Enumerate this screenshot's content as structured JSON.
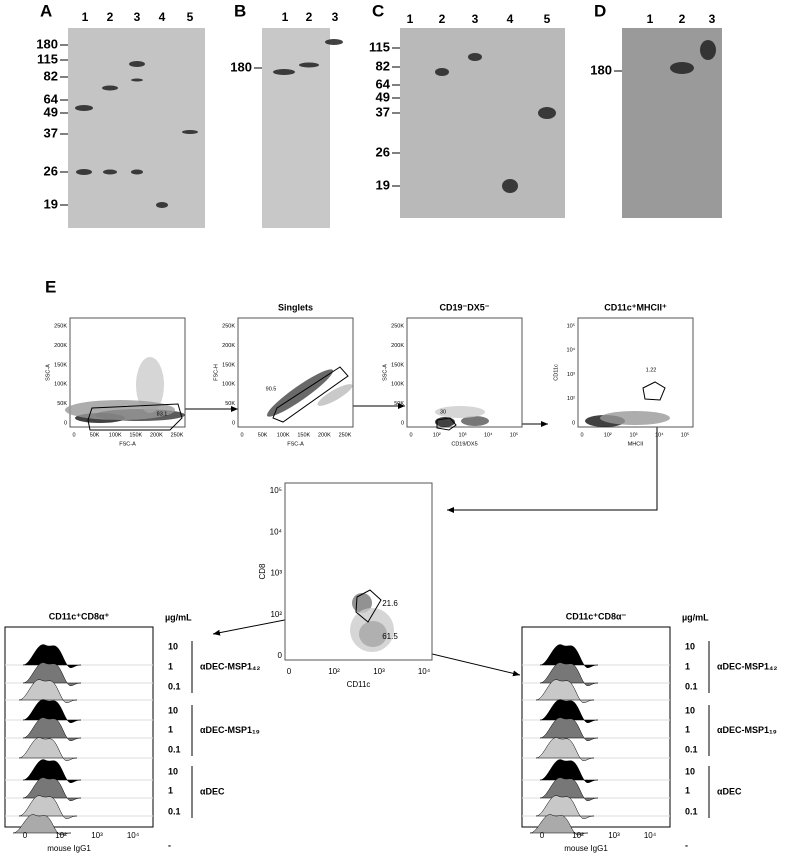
{
  "blots": [
    {
      "label": "A",
      "lanes": [
        "1",
        "2",
        "3",
        "4",
        "5"
      ],
      "markers": [
        "180",
        "115",
        "82",
        "64",
        "49",
        "37",
        "26",
        "19"
      ]
    },
    {
      "label": "B",
      "lanes": [
        "1",
        "2",
        "3"
      ],
      "markers": [
        "180"
      ]
    },
    {
      "label": "C",
      "lanes": [
        "1",
        "2",
        "3",
        "4",
        "5"
      ],
      "markers": [
        "115",
        "82",
        "64",
        "49",
        "37",
        "26",
        "19"
      ]
    },
    {
      "label": "D",
      "lanes": [
        "1",
        "2",
        "3"
      ],
      "markers": [
        "180"
      ]
    }
  ],
  "flow": {
    "label": "E",
    "plots": [
      {
        "ylabel": "SSC-A",
        "xlabel": "FSC-A",
        "xticks": [
          "0",
          "50K",
          "100K",
          "150K",
          "200K",
          "250K"
        ],
        "yticks": [
          "0",
          "50K",
          "100K",
          "150K",
          "200K",
          "250K"
        ],
        "gates": [
          "83.1"
        ]
      },
      {
        "title": "Singlets",
        "ylabel": "FSC-H",
        "xlabel": "FSC-A",
        "xticks": [
          "0",
          "50K",
          "100K",
          "150K",
          "200K",
          "250K"
        ],
        "yticks": [
          "0",
          "50K",
          "100K",
          "150K",
          "200K",
          "250K"
        ],
        "gates": [
          "90.5"
        ]
      },
      {
        "title": "CD19⁻DX5⁻",
        "ylabel": "SSC-A",
        "xlabel": "CD19/DX5",
        "xticks": [
          "0",
          "10²",
          "10³",
          "10⁴",
          "10⁵"
        ],
        "yticks": [
          "0",
          "50K",
          "100K",
          "150K",
          "200K",
          "250K"
        ],
        "gates": [
          "30"
        ]
      },
      {
        "title": "CD11c⁺MHCII⁺",
        "ylabel": "CD11c",
        "xlabel": "MHCII",
        "xticks": [
          "0",
          "10²",
          "10³",
          "10⁴",
          "10⁵"
        ],
        "yticks": [
          "0",
          "10²",
          "10³",
          "10⁴",
          "10⁵"
        ],
        "gates": [
          "1.22"
        ]
      },
      {
        "ylabel": "CD8",
        "xlabel": "CD11c",
        "xticks": [
          "0",
          "10²",
          "10³",
          "10⁴"
        ],
        "yticks": [
          "0",
          "10²",
          "10³",
          "10⁴",
          "10⁵"
        ],
        "gates": [
          "21.6",
          "61.5"
        ]
      }
    ],
    "histograms": [
      {
        "title": "CD11c⁺CD8α⁺",
        "unit": "µg/mL",
        "doses": [
          "10",
          "1",
          "0.1",
          "10",
          "1",
          "0.1",
          "10",
          "1",
          "0.1",
          "-"
        ],
        "groups": [
          "αDEC-MSP1₄₂",
          "αDEC-MSP1₁₉",
          "αDEC"
        ],
        "xlabel": "mouse IgG1",
        "xticks": [
          "0",
          "10²",
          "10³",
          "10⁴"
        ]
      },
      {
        "title": "CD11c⁺CD8α⁻",
        "unit": "µg/mL",
        "doses": [
          "10",
          "1",
          "0.1",
          "10",
          "1",
          "0.1",
          "10",
          "1",
          "0.1",
          "-"
        ],
        "groups": [
          "αDEC-MSP1₄₂",
          "αDEC-MSP1₁₉",
          "αDEC"
        ],
        "xlabel": "mouse IgG1",
        "xticks": [
          "0",
          "10²",
          "10³",
          "10⁴"
        ]
      }
    ]
  }
}
